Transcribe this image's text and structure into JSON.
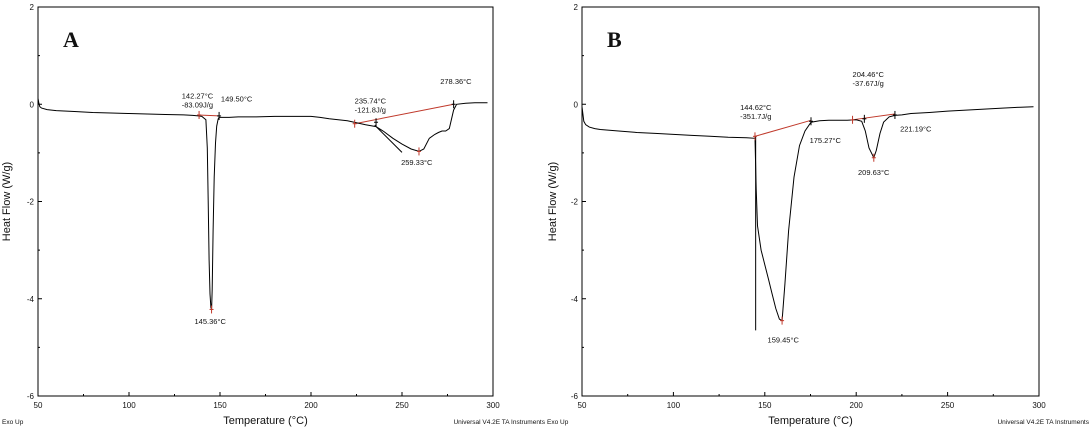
{
  "colors": {
    "curve": "#000000",
    "baseline": "#c0392b",
    "frame": "#000000",
    "background": "#ffffff"
  },
  "footer": {
    "exo_label": "Exo Up",
    "instrument_label": "Universal V4.2E TA Instruments"
  },
  "chart_data": [
    {
      "type": "line",
      "panel_label": "A",
      "xlabel": "Temperature (°C)",
      "ylabel": "Heat Flow (W/g)",
      "xlim": [
        50,
        300
      ],
      "ylim": [
        -6,
        2
      ],
      "x_ticks": [
        "50",
        "100",
        "150",
        "200",
        "250",
        "300"
      ],
      "y_ticks": [
        "2",
        "0",
        "-2",
        "-4",
        "-6"
      ],
      "grid": false,
      "series": [
        {
          "x": [
            50.0,
            50.5,
            51,
            52,
            55,
            60,
            70,
            80,
            90,
            100,
            110,
            120,
            130,
            135,
            138,
            140,
            142.27,
            143,
            143.5,
            144,
            144.5,
            145,
            145.36,
            145.7,
            146.2,
            146.8,
            147.5,
            148.2,
            149,
            149.5,
            150,
            155,
            160,
            170,
            180,
            190,
            200,
            205,
            210,
            220,
            225,
            230,
            235.74,
            240,
            245,
            250,
            255,
            259.33,
            262,
            265,
            268,
            270,
            272,
            274,
            276,
            278.36,
            280,
            285,
            290,
            295,
            297
          ],
          "y": [
            0.12,
            0.02,
            -0.05,
            -0.08,
            -0.11,
            -0.13,
            -0.15,
            -0.17,
            -0.18,
            -0.19,
            -0.2,
            -0.21,
            -0.22,
            -0.23,
            -0.24,
            -0.25,
            -0.32,
            -0.9,
            -2.0,
            -3.2,
            -3.9,
            -4.18,
            -4.22,
            -3.8,
            -2.6,
            -1.5,
            -0.8,
            -0.45,
            -0.3,
            -0.27,
            -0.27,
            -0.27,
            -0.26,
            -0.26,
            -0.25,
            -0.25,
            -0.25,
            -0.27,
            -0.3,
            -0.34,
            -0.38,
            -0.42,
            -0.46,
            -0.56,
            -0.7,
            -0.82,
            -0.92,
            -0.97,
            -0.92,
            -0.7,
            -0.62,
            -0.58,
            -0.55,
            -0.55,
            -0.5,
            -0.12,
            0.0,
            0.02,
            0.03,
            0.03,
            0.03
          ]
        }
      ],
      "baselines": [
        {
          "x": [
            138,
            149.5
          ],
          "y": [
            -0.22,
            -0.24
          ]
        },
        {
          "x": [
            224,
            278.36
          ],
          "y": [
            -0.4,
            0.0
          ]
        }
      ],
      "tangents": [
        {
          "x": [
            235,
            250
          ],
          "y": [
            -0.43,
            -0.99
          ]
        }
      ],
      "markers": [
        {
          "x": 138.5,
          "y": -0.22,
          "color": "baseline"
        },
        {
          "x": 149.5,
          "y": -0.24,
          "color": "curve"
        },
        {
          "x": 145.36,
          "y": -4.22,
          "color": "baseline"
        },
        {
          "x": 224,
          "y": -0.4,
          "color": "baseline"
        },
        {
          "x": 235.74,
          "y": -0.37,
          "color": "curve"
        },
        {
          "x": 259.33,
          "y": -0.97,
          "color": "baseline"
        },
        {
          "x": 278.36,
          "y": 0.0,
          "color": "curve"
        }
      ],
      "annotations": [
        {
          "lines": [
            "142.27°C",
            "-83.09J/g"
          ],
          "x": 129,
          "y": 0.12
        },
        {
          "lines": [
            "149.50°C"
          ],
          "x": 150.5,
          "y": 0.06
        },
        {
          "lines": [
            "145.36°C"
          ],
          "x": 136,
          "y": -4.52
        },
        {
          "lines": [
            "235.74°C",
            "-121.8J/g"
          ],
          "x": 224,
          "y": 0.02
        },
        {
          "lines": [
            "278.36°C"
          ],
          "x": 271,
          "y": 0.42
        },
        {
          "lines": [
            "259.33°C"
          ],
          "x": 249.5,
          "y": -1.25
        }
      ]
    },
    {
      "type": "line",
      "panel_label": "B",
      "xlabel": "Temperature (°C)",
      "ylabel": "Heat Flow (W/g)",
      "xlim": [
        50,
        300
      ],
      "ylim": [
        -6,
        2
      ],
      "x_ticks": [
        "50",
        "100",
        "150",
        "200",
        "250",
        "300"
      ],
      "y_ticks": [
        "2",
        "0",
        "-2",
        "-4",
        "-6"
      ],
      "grid": false,
      "series": [
        {
          "x": [
            50.0,
            50.5,
            51,
            52,
            54,
            57,
            60,
            70,
            80,
            90,
            100,
            110,
            120,
            130,
            140,
            144.62,
            145.3,
            146,
            148,
            150,
            152,
            154,
            156,
            158,
            159.45,
            161,
            163,
            166,
            169,
            172,
            175.27,
            180,
            185,
            190,
            195,
            200,
            203,
            205,
            207,
            209.63,
            211,
            213,
            215,
            218,
            221.19,
            225,
            230,
            240,
            250,
            260,
            270,
            280,
            290,
            297
          ],
          "y": [
            -0.05,
            -0.2,
            -0.35,
            -0.42,
            -0.47,
            -0.5,
            -0.52,
            -0.55,
            -0.58,
            -0.6,
            -0.62,
            -0.64,
            -0.66,
            -0.68,
            -0.69,
            -0.7,
            -1.75,
            -2.5,
            -3.0,
            -3.3,
            -3.6,
            -3.9,
            -4.2,
            -4.42,
            -4.45,
            -3.7,
            -2.6,
            -1.5,
            -0.85,
            -0.55,
            -0.37,
            -0.34,
            -0.33,
            -0.33,
            -0.33,
            -0.32,
            -0.35,
            -0.55,
            -0.9,
            -1.1,
            -0.95,
            -0.6,
            -0.37,
            -0.26,
            -0.23,
            -0.22,
            -0.19,
            -0.17,
            -0.14,
            -0.12,
            -0.1,
            -0.08,
            -0.06,
            -0.05
          ]
        }
      ],
      "baselines": [
        {
          "x": [
            144.62,
            175.27
          ],
          "y": [
            -0.66,
            -0.33
          ]
        },
        {
          "x": [
            198,
            221.19
          ],
          "y": [
            -0.32,
            -0.2
          ]
        }
      ],
      "tangents": [],
      "vlines": [
        {
          "x": 145,
          "y": [
            -0.66,
            -4.65
          ]
        }
      ],
      "markers": [
        {
          "x": 144.62,
          "y": -0.66,
          "color": "baseline"
        },
        {
          "x": 159.45,
          "y": -4.45,
          "color": "baseline"
        },
        {
          "x": 175.27,
          "y": -0.35,
          "color": "curve"
        },
        {
          "x": 198,
          "y": -0.32,
          "color": "baseline"
        },
        {
          "x": 204.46,
          "y": -0.3,
          "color": "curve"
        },
        {
          "x": 209.63,
          "y": -1.1,
          "color": "baseline"
        },
        {
          "x": 221.19,
          "y": -0.22,
          "color": "curve"
        }
      ],
      "annotations": [
        {
          "lines": [
            "144.62°C",
            "-351.7J/g"
          ],
          "x": 136.5,
          "y": -0.12
        },
        {
          "lines": [
            "175.27°C"
          ],
          "x": 174.5,
          "y": -0.8
        },
        {
          "lines": [
            "159.45°C"
          ],
          "x": 151.5,
          "y": -4.9
        },
        {
          "lines": [
            "204.46°C",
            "-37.67J/g"
          ],
          "x": 198,
          "y": 0.56
        },
        {
          "lines": [
            "221.19°C"
          ],
          "x": 224,
          "y": -0.56
        },
        {
          "lines": [
            "209.63°C"
          ],
          "x": 201,
          "y": -1.46
        }
      ]
    }
  ]
}
